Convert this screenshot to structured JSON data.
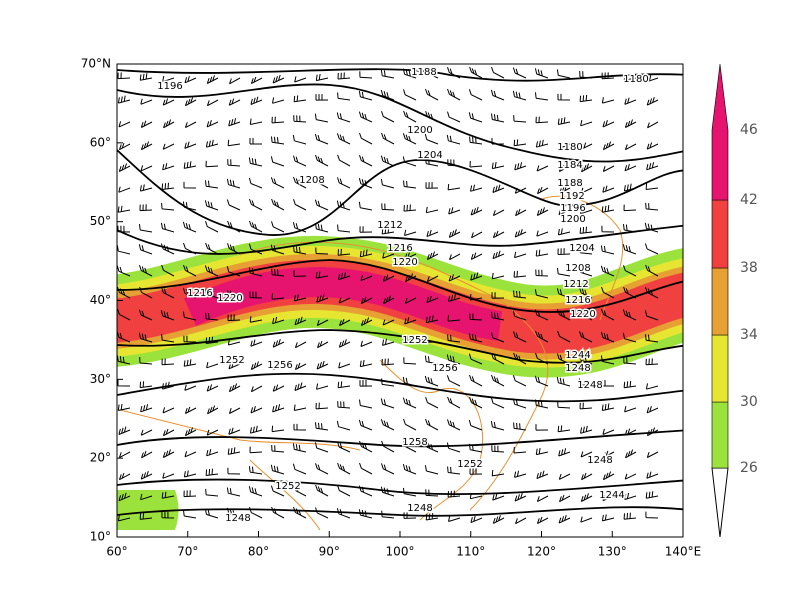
{
  "axes": {
    "x_labels": [
      "60°",
      "70°",
      "80°",
      "90°",
      "100°",
      "110°",
      "120°",
      "130°",
      "140°E"
    ],
    "y_labels": [
      "10°",
      "20°",
      "30°",
      "40°",
      "50°",
      "60°",
      "70°N"
    ]
  },
  "colorbar": {
    "labels": [
      26,
      30,
      34,
      38,
      42,
      46
    ],
    "colors": [
      "#9be33c",
      "#e6e632",
      "#e6a033",
      "#f04040",
      "#e6146e"
    ]
  },
  "contour_labels": [
    "1188",
    "1180",
    "1196",
    "1208",
    "1200",
    "1204",
    "1212",
    "1216",
    "1220",
    "1216",
    "1220",
    "1252",
    "1256",
    "1252",
    "1256",
    "1248",
    "1258",
    "1252",
    "1248",
    "1252",
    "1248",
    "1248",
    "1244",
    "1180",
    "1184",
    "1188",
    "1192",
    "1196",
    "1200",
    "1204",
    "1208",
    "1212",
    "1216",
    "1220",
    "1244",
    "1248"
  ]
}
